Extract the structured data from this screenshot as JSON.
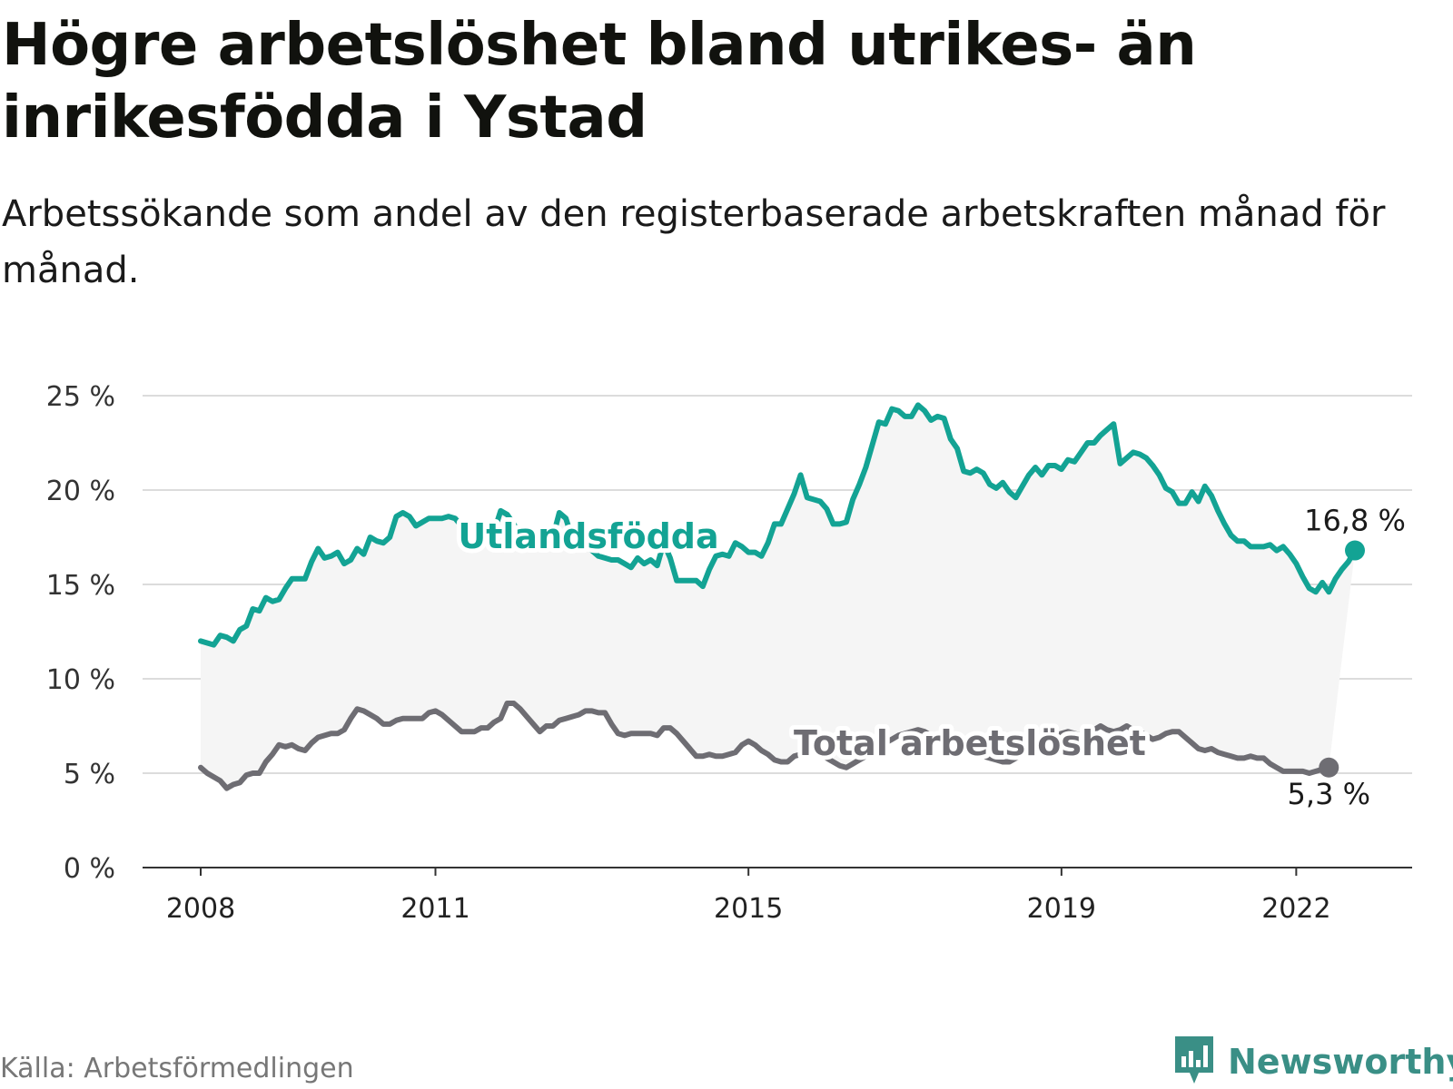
{
  "title": "Högre arbetslöshet bland utrikes- än inrikesfödda i Ystad",
  "subtitle": "Arbetssökande som andel av den registerbaserade arbetskraften månad för månad.",
  "source": "Källa: Arbetsförmedlingen",
  "brand": {
    "name": "Newsworthy",
    "icon": "bar-chart-logo-icon",
    "color": "#3a8f86"
  },
  "colors": {
    "foreign": "#13a394",
    "total": "#6e6d73",
    "band": "#f5f5f5",
    "grid": "#dcdcdc",
    "axis": "#333333"
  },
  "chart_data": {
    "type": "line",
    "x_start": "2008-01",
    "x_end": "2022-12",
    "xlim": [
      2008.0,
      2024.0
    ],
    "ylim": [
      0,
      25
    ],
    "y_ticks": [
      0,
      5,
      10,
      15,
      20,
      25
    ],
    "y_tick_labels": [
      "0 %",
      "5 %",
      "10 %",
      "15 %",
      "20 %",
      "25 %"
    ],
    "x_ticks": [
      2008,
      2011,
      2015,
      2019,
      2022
    ],
    "x_tick_labels": [
      "2008",
      "2011",
      "2015",
      "2019",
      "2022"
    ],
    "series": [
      {
        "name": "Utlandsfödda",
        "label_position": "upper-left",
        "color": "#13a394",
        "end_label": "16,8 %",
        "values": [
          12.0,
          11.9,
          11.8,
          12.3,
          12.2,
          12.0,
          12.6,
          12.8,
          13.7,
          13.6,
          14.3,
          14.1,
          14.2,
          14.8,
          15.3,
          15.3,
          15.3,
          16.2,
          16.9,
          16.4,
          16.5,
          16.7,
          16.1,
          16.3,
          16.9,
          16.6,
          17.5,
          17.3,
          17.2,
          17.5,
          18.6,
          18.8,
          18.6,
          18.1,
          18.3,
          18.5,
          18.5,
          18.5,
          18.6,
          18.5,
          18.1,
          18.0,
          17.8,
          17.5,
          17.3,
          17.8,
          18.9,
          18.7,
          18.2,
          17.6,
          17.3,
          17.3,
          17.4,
          17.9,
          17.5,
          18.8,
          18.5,
          17.4,
          17.0,
          17.0,
          16.8,
          16.5,
          16.4,
          16.3,
          16.3,
          16.1,
          15.9,
          16.4,
          16.1,
          16.3,
          16.0,
          17.2,
          16.4,
          15.2,
          15.2,
          15.2,
          15.2,
          14.9,
          15.8,
          16.5,
          16.6,
          16.5,
          17.2,
          17.0,
          16.7,
          16.7,
          16.5,
          17.2,
          18.2,
          18.2,
          19.0,
          19.8,
          20.8,
          19.6,
          19.5,
          19.4,
          19.0,
          18.2,
          18.2,
          18.3,
          19.5,
          20.3,
          21.2,
          22.4,
          23.6,
          23.5,
          24.3,
          24.2,
          23.9,
          23.9,
          24.5,
          24.2,
          23.7,
          23.9,
          23.8,
          22.7,
          22.2,
          21.0,
          20.9,
          21.1,
          20.9,
          20.3,
          20.1,
          20.4,
          19.9,
          19.6,
          20.2,
          20.8,
          21.2,
          20.8,
          21.3,
          21.3,
          21.1,
          21.6,
          21.5,
          22.0,
          22.5,
          22.5,
          22.9,
          23.2,
          23.5,
          21.4,
          21.7,
          22.0,
          21.9,
          21.7,
          21.3,
          20.8,
          20.1,
          19.9,
          19.3,
          19.3,
          19.9,
          19.4,
          20.2,
          19.7,
          18.9,
          18.2,
          17.6,
          17.3,
          17.3,
          17.0,
          17.0,
          17.0,
          17.1,
          16.8,
          17.0,
          16.6,
          16.1,
          15.4,
          14.8,
          14.6,
          15.1,
          14.6,
          15.3,
          15.8,
          16.2,
          16.8
        ]
      },
      {
        "name": "Total arbetslöshet",
        "label_position": "lower-right",
        "color": "#6e6d73",
        "end_label": "5,3 %",
        "values": [
          5.3,
          5.0,
          4.8,
          4.6,
          4.2,
          4.4,
          4.5,
          4.9,
          5.0,
          5.0,
          5.6,
          6.0,
          6.5,
          6.4,
          6.5,
          6.3,
          6.2,
          6.6,
          6.9,
          7.0,
          7.1,
          7.1,
          7.3,
          7.9,
          8.4,
          8.3,
          8.1,
          7.9,
          7.6,
          7.6,
          7.8,
          7.9,
          7.9,
          7.9,
          7.9,
          8.2,
          8.3,
          8.1,
          7.8,
          7.5,
          7.2,
          7.2,
          7.2,
          7.4,
          7.4,
          7.7,
          7.9,
          8.7,
          8.7,
          8.4,
          8.0,
          7.6,
          7.2,
          7.5,
          7.5,
          7.8,
          7.9,
          8.0,
          8.1,
          8.3,
          8.3,
          8.2,
          8.2,
          7.6,
          7.1,
          7.0,
          7.1,
          7.1,
          7.1,
          7.1,
          7.0,
          7.4,
          7.4,
          7.1,
          6.7,
          6.3,
          5.9,
          5.9,
          6.0,
          5.9,
          5.9,
          6.0,
          6.1,
          6.5,
          6.7,
          6.5,
          6.2,
          6.0,
          5.7,
          5.6,
          5.6,
          5.9,
          6.0,
          6.3,
          6.2,
          6.0,
          5.8,
          5.6,
          5.4,
          5.3,
          5.5,
          5.7,
          5.9,
          6.2,
          6.5,
          6.6,
          6.8,
          7.0,
          7.1,
          7.2,
          7.3,
          7.2,
          7.0,
          6.9,
          6.7,
          6.5,
          6.4,
          6.2,
          6.1,
          6.0,
          5.9,
          5.8,
          5.7,
          5.6,
          5.6,
          5.8,
          6.0,
          6.2,
          6.4,
          6.6,
          6.8,
          7.0,
          7.1,
          7.2,
          7.1,
          7.0,
          7.2,
          7.3,
          7.5,
          7.3,
          7.2,
          7.3,
          7.5,
          7.3,
          7.2,
          7.0,
          6.8,
          6.9,
          7.1,
          7.2,
          7.2,
          6.9,
          6.6,
          6.3,
          6.2,
          6.3,
          6.1,
          6.0,
          5.9,
          5.8,
          5.8,
          5.9,
          5.8,
          5.8,
          5.5,
          5.3,
          5.1,
          5.1,
          5.1,
          5.1,
          5.0,
          5.1,
          5.2,
          5.3
        ]
      }
    ]
  }
}
